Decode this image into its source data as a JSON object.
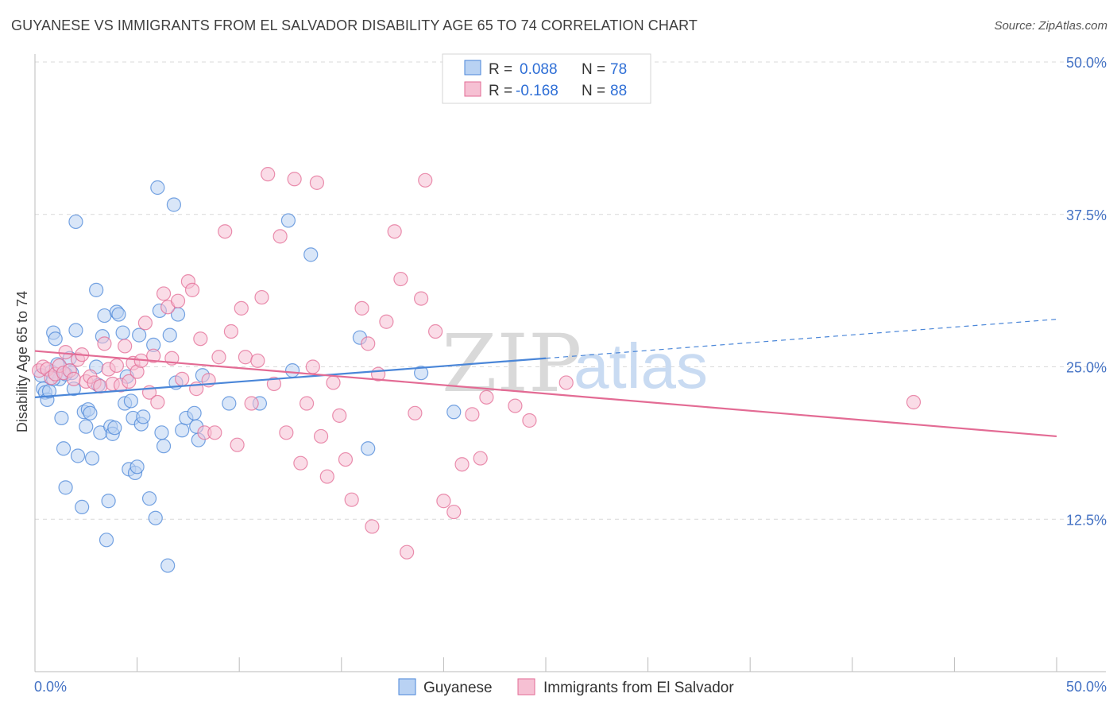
{
  "title": "GUYANESE VS IMMIGRANTS FROM EL SALVADOR DISABILITY AGE 65 TO 74 CORRELATION CHART",
  "source": "Source: ZipAtlas.com",
  "watermark": {
    "zip": "ZIP",
    "atlas": "atlas"
  },
  "colors": {
    "blue": "#4a86d8",
    "blue_fill": "#b9d2f3",
    "pink": "#e36b94",
    "pink_fill": "#f6c0d3",
    "tick": "#4472c4",
    "grid": "#d9d9d9"
  },
  "legend": {
    "rows": [
      {
        "r_label": "R =",
        "r_value": "0.088",
        "n_label": "N =",
        "n_value": "78"
      },
      {
        "r_label": "R =",
        "r_value": "-0.168",
        "n_label": "N =",
        "n_value": "88"
      }
    ]
  },
  "bottom_legend": [
    "Guyanese",
    "Immigrants from El Salvador"
  ],
  "chart_data": {
    "type": "scatter",
    "title": "GUYANESE VS IMMIGRANTS FROM EL SALVADOR DISABILITY AGE 65 TO 74 CORRELATION CHART",
    "xlabel": "",
    "ylabel": "Disability Age 65 to 74",
    "xlim": [
      0,
      50
    ],
    "ylim": [
      0,
      50
    ],
    "x_tick_labels": [
      "0.0%",
      "50.0%"
    ],
    "y_ticks": [
      12.5,
      25.0,
      37.5,
      50.0
    ],
    "y_tick_labels": [
      "12.5%",
      "25.0%",
      "37.5%",
      "50.0%"
    ],
    "grid": true,
    "legend_position": "top-center",
    "series": [
      {
        "name": "Guyanese",
        "color": "#4a86d8",
        "trend": {
          "x0": 0,
          "y0": 22.5,
          "x1": 25,
          "y1": 25.7,
          "dashed_to_x": 50,
          "dashed_to_y": 28.9
        },
        "points": [
          [
            0.3,
            24.3
          ],
          [
            0.4,
            23.2
          ],
          [
            0.5,
            22.9
          ],
          [
            0.6,
            22.3
          ],
          [
            0.7,
            23.0
          ],
          [
            0.8,
            24.6
          ],
          [
            0.9,
            27.8
          ],
          [
            1.0,
            27.3
          ],
          [
            1.1,
            25.2
          ],
          [
            1.2,
            24.0
          ],
          [
            1.3,
            20.8
          ],
          [
            1.4,
            18.3
          ],
          [
            1.5,
            15.1
          ],
          [
            1.7,
            25.7
          ],
          [
            1.8,
            24.5
          ],
          [
            1.9,
            23.2
          ],
          [
            2.0,
            28.0
          ],
          [
            2.1,
            17.7
          ],
          [
            2.3,
            13.5
          ],
          [
            2.4,
            21.3
          ],
          [
            2.5,
            20.1
          ],
          [
            2.6,
            21.5
          ],
          [
            2.7,
            21.2
          ],
          [
            2.8,
            17.5
          ],
          [
            3.0,
            31.3
          ],
          [
            3.1,
            23.5
          ],
          [
            3.2,
            19.6
          ],
          [
            3.3,
            27.5
          ],
          [
            3.4,
            29.2
          ],
          [
            3.5,
            10.8
          ],
          [
            3.6,
            14.0
          ],
          [
            3.7,
            20.1
          ],
          [
            3.8,
            19.5
          ],
          [
            3.9,
            20.0
          ],
          [
            4.0,
            29.5
          ],
          [
            4.1,
            29.3
          ],
          [
            4.3,
            27.8
          ],
          [
            4.4,
            22.0
          ],
          [
            4.5,
            24.2
          ],
          [
            4.6,
            16.6
          ],
          [
            4.7,
            22.2
          ],
          [
            4.8,
            20.8
          ],
          [
            4.9,
            16.3
          ],
          [
            5.0,
            16.8
          ],
          [
            5.1,
            27.6
          ],
          [
            5.2,
            20.3
          ],
          [
            5.3,
            20.9
          ],
          [
            5.6,
            14.2
          ],
          [
            5.8,
            26.8
          ],
          [
            5.9,
            12.6
          ],
          [
            6.0,
            39.7
          ],
          [
            6.1,
            29.6
          ],
          [
            6.2,
            19.6
          ],
          [
            6.3,
            18.5
          ],
          [
            6.5,
            8.7
          ],
          [
            6.6,
            27.6
          ],
          [
            6.8,
            38.3
          ],
          [
            6.9,
            23.7
          ],
          [
            7.0,
            29.3
          ],
          [
            7.2,
            19.8
          ],
          [
            7.4,
            20.8
          ],
          [
            7.8,
            21.2
          ],
          [
            7.9,
            20.1
          ],
          [
            8.0,
            19.0
          ],
          [
            8.2,
            24.3
          ],
          [
            3.0,
            25.0
          ],
          [
            9.5,
            22.0
          ],
          [
            11.0,
            22.0
          ],
          [
            12.4,
            37.0
          ],
          [
            12.6,
            24.7
          ],
          [
            13.5,
            34.2
          ],
          [
            15.9,
            27.4
          ],
          [
            16.3,
            18.3
          ],
          [
            18.9,
            24.5
          ],
          [
            20.5,
            21.3
          ],
          [
            2.0,
            36.9
          ],
          [
            1.5,
            24.4
          ],
          [
            0.9,
            24.0
          ]
        ]
      },
      {
        "name": "Immigrants from El Salvador",
        "color": "#e36b94",
        "trend": {
          "x0": 0,
          "y0": 26.3,
          "x1": 50,
          "y1": 19.3
        },
        "points": [
          [
            0.2,
            24.7
          ],
          [
            0.4,
            25.0
          ],
          [
            0.6,
            24.8
          ],
          [
            0.8,
            24.1
          ],
          [
            1.0,
            24.4
          ],
          [
            1.2,
            25.1
          ],
          [
            1.4,
            24.5
          ],
          [
            1.5,
            26.2
          ],
          [
            1.7,
            24.7
          ],
          [
            1.9,
            24.0
          ],
          [
            2.1,
            25.6
          ],
          [
            2.3,
            26.0
          ],
          [
            2.5,
            23.8
          ],
          [
            2.7,
            24.2
          ],
          [
            2.9,
            23.7
          ],
          [
            3.2,
            23.4
          ],
          [
            3.4,
            26.9
          ],
          [
            3.6,
            24.8
          ],
          [
            3.8,
            23.6
          ],
          [
            4.0,
            25.1
          ],
          [
            4.2,
            23.5
          ],
          [
            4.4,
            26.7
          ],
          [
            4.6,
            23.8
          ],
          [
            4.8,
            25.3
          ],
          [
            5.0,
            24.6
          ],
          [
            5.2,
            25.5
          ],
          [
            5.4,
            28.6
          ],
          [
            5.6,
            22.9
          ],
          [
            5.8,
            25.9
          ],
          [
            6.0,
            22.1
          ],
          [
            6.3,
            31.0
          ],
          [
            6.5,
            29.9
          ],
          [
            6.7,
            25.7
          ],
          [
            7.0,
            30.4
          ],
          [
            7.2,
            24.0
          ],
          [
            7.5,
            32.0
          ],
          [
            7.7,
            31.3
          ],
          [
            7.9,
            23.2
          ],
          [
            8.1,
            27.3
          ],
          [
            8.3,
            19.6
          ],
          [
            8.5,
            23.9
          ],
          [
            8.8,
            19.6
          ],
          [
            9.0,
            25.8
          ],
          [
            9.3,
            36.1
          ],
          [
            9.6,
            27.9
          ],
          [
            9.9,
            18.6
          ],
          [
            10.1,
            29.8
          ],
          [
            10.3,
            25.8
          ],
          [
            10.6,
            22.0
          ],
          [
            10.9,
            25.5
          ],
          [
            11.1,
            30.7
          ],
          [
            11.4,
            40.8
          ],
          [
            11.7,
            23.6
          ],
          [
            12.0,
            35.7
          ],
          [
            12.3,
            19.6
          ],
          [
            12.7,
            40.4
          ],
          [
            13.0,
            17.1
          ],
          [
            13.3,
            22.0
          ],
          [
            13.6,
            25.0
          ],
          [
            13.8,
            40.1
          ],
          [
            14.0,
            19.3
          ],
          [
            14.3,
            16.0
          ],
          [
            14.6,
            23.7
          ],
          [
            14.9,
            21.0
          ],
          [
            15.2,
            17.4
          ],
          [
            15.5,
            14.1
          ],
          [
            16.0,
            29.8
          ],
          [
            16.3,
            26.9
          ],
          [
            16.5,
            11.9
          ],
          [
            16.8,
            24.4
          ],
          [
            17.2,
            28.7
          ],
          [
            17.6,
            36.1
          ],
          [
            17.9,
            32.2
          ],
          [
            18.2,
            9.8
          ],
          [
            18.6,
            21.2
          ],
          [
            18.9,
            30.6
          ],
          [
            19.1,
            40.3
          ],
          [
            19.6,
            27.9
          ],
          [
            20.0,
            14.0
          ],
          [
            20.5,
            13.1
          ],
          [
            20.9,
            17.0
          ],
          [
            21.4,
            21.1
          ],
          [
            21.8,
            17.5
          ],
          [
            22.1,
            22.5
          ],
          [
            23.5,
            21.8
          ],
          [
            24.2,
            20.6
          ],
          [
            26.0,
            23.7
          ],
          [
            43.0,
            22.1
          ]
        ]
      }
    ]
  }
}
